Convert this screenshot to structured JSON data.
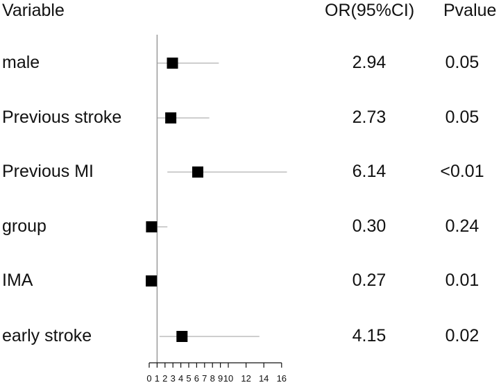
{
  "headers": {
    "variable": "Variable",
    "or": "OR(95%CI)",
    "pvalue": "Pvalue"
  },
  "chart_data": {
    "type": "forest",
    "x_axis": {
      "ticks": [
        0,
        1,
        2,
        3,
        4,
        5,
        6,
        7,
        8,
        9,
        10,
        12,
        14,
        16
      ],
      "range": [
        0,
        16
      ],
      "reference": 1
    },
    "rows": [
      {
        "label": "male",
        "or": 2.94,
        "ci_low": 1.0,
        "ci_high": 8.8,
        "or_text": "2.94",
        "p_text": "0.05"
      },
      {
        "label": "Previous stroke",
        "or": 2.73,
        "ci_low": 1.0,
        "ci_high": 7.6,
        "or_text": "2.73",
        "p_text": "0.05"
      },
      {
        "label": "Previous MI",
        "or": 6.14,
        "ci_low": 2.3,
        "ci_high": 16.6,
        "or_text": "6.14",
        "p_text": "<0.01"
      },
      {
        "label": "group",
        "or": 0.3,
        "ci_low": 0.05,
        "ci_high": 2.3,
        "or_text": "0.30",
        "p_text": "0.24"
      },
      {
        "label": "IMA",
        "or": 0.27,
        "ci_low": 0.1,
        "ci_high": 0.95,
        "or_text": "0.27",
        "p_text": "0.01"
      },
      {
        "label": "early stroke",
        "or": 4.15,
        "ci_low": 1.3,
        "ci_high": 13.5,
        "or_text": "4.15",
        "p_text": "0.02"
      }
    ]
  }
}
